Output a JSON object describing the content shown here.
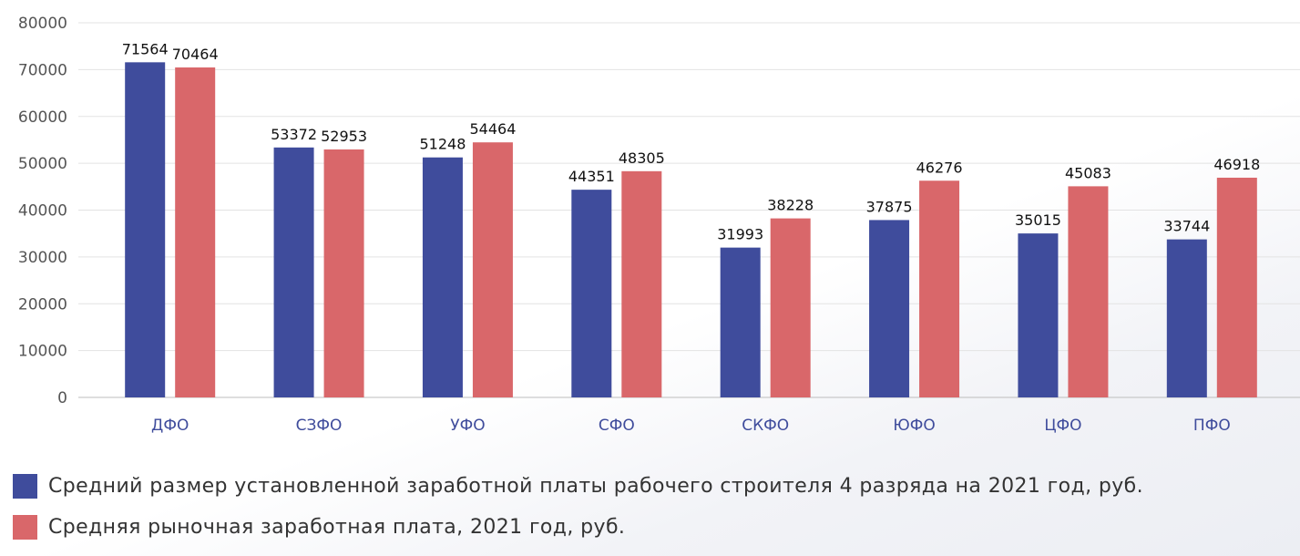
{
  "chart_data": {
    "type": "bar",
    "categories": [
      "ДФО",
      "СЗФО",
      "УФО",
      "СФО",
      "СКФО",
      "ЮФО",
      "ЦФО",
      "ПФО"
    ],
    "series": [
      {
        "name": "Средний размер установленной заработной платы рабочего строителя 4 разряда на 2021 год, руб.",
        "color": "#3f4c9c",
        "values": [
          71564,
          53372,
          51248,
          44351,
          31993,
          37875,
          35015,
          33744
        ]
      },
      {
        "name": "Средняя рыночная заработная плата, 2021 год, руб.",
        "color": "#d9676a",
        "values": [
          70464,
          52953,
          54464,
          48305,
          38228,
          46276,
          45083,
          46918
        ]
      }
    ],
    "yticks": [
      "0",
      "10000",
      "20000",
      "30000",
      "40000",
      "50000",
      "60000",
      "70000",
      "80000"
    ],
    "ylim": [
      0,
      80000
    ],
    "grid": true,
    "legend_position": "bottom-left",
    "category_label_color": "#3f4c9c"
  }
}
